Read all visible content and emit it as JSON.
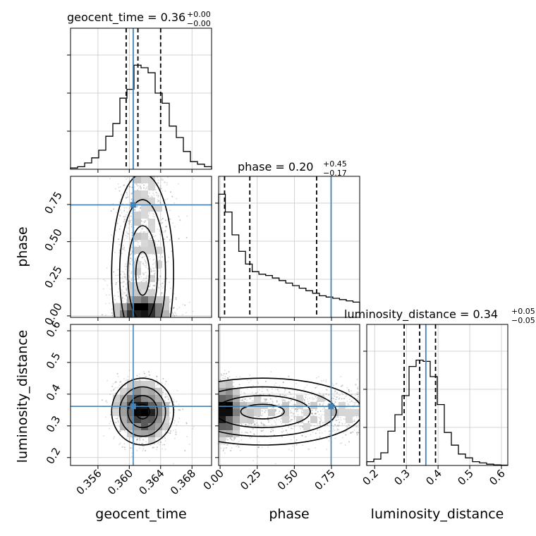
{
  "colors": {
    "truth": "#4682b4",
    "hist": "#000000",
    "grid": "#c8c8c8",
    "density_dark": "#000000",
    "density_light": "#ffffff"
  },
  "chart_data": {
    "type": "corner",
    "parameters": [
      "geocent_time",
      "phase",
      "luminosity_distance"
    ],
    "titles": [
      {
        "name": "geocent_time",
        "value": "0.36",
        "upper": "+0.00",
        "lower": "−0.00"
      },
      {
        "name": "phase",
        "value": "0.20",
        "upper": "+0.45",
        "lower": "−0.17"
      },
      {
        "name": "luminosity_distance",
        "value": "0.34",
        "upper": "+0.05",
        "lower": "−0.05"
      }
    ],
    "ranges": {
      "geocent_time": [
        0.3525,
        0.3705
      ],
      "phase": [
        -0.01,
        0.94
      ],
      "luminosity_distance": [
        0.175,
        0.62
      ]
    },
    "ticks": {
      "geocent_time": [
        "0.356",
        "0.360",
        "0.364",
        "0.368"
      ],
      "phase": [
        "0.00",
        "0.25",
        "0.50",
        "0.75"
      ],
      "luminosity_distance": [
        "0.2",
        "0.3",
        "0.4",
        "0.5",
        "0.6"
      ]
    },
    "truths": {
      "geocent_time": 0.3605,
      "phase": 0.7475,
      "luminosity_distance": 0.3615
    },
    "quantiles": {
      "geocent_time": [
        0.3596,
        0.3611,
        0.364
      ],
      "phase": [
        0.03,
        0.2,
        0.65
      ],
      "luminosity_distance": [
        0.293,
        0.342,
        0.392
      ]
    },
    "hist_1d": {
      "geocent_time": {
        "edges": [
          0.3525,
          0.3705
        ],
        "counts": [
          0.01,
          0.02,
          0.05,
          0.09,
          0.15,
          0.26,
          0.36,
          0.56,
          0.63,
          0.82,
          0.8,
          0.76,
          0.6,
          0.52,
          0.34,
          0.25,
          0.14,
          0.06,
          0.04,
          0.02
        ]
      },
      "phase": {
        "edges": [
          -0.01,
          0.94
        ],
        "counts": [
          0.97,
          0.83,
          0.65,
          0.52,
          0.42,
          0.36,
          0.34,
          0.33,
          0.31,
          0.29,
          0.27,
          0.25,
          0.23,
          0.21,
          0.19,
          0.17,
          0.16,
          0.15,
          0.14,
          0.13,
          0.12
        ]
      },
      "luminosity_distance": {
        "edges": [
          0.175,
          0.62
        ],
        "counts": [
          0.03,
          0.05,
          0.1,
          0.27,
          0.4,
          0.55,
          0.78,
          0.83,
          0.82,
          0.7,
          0.48,
          0.26,
          0.16,
          0.09,
          0.06,
          0.03,
          0.02,
          0.01,
          0.005,
          0.003
        ]
      }
    },
    "legend": "none",
    "grid": true
  }
}
